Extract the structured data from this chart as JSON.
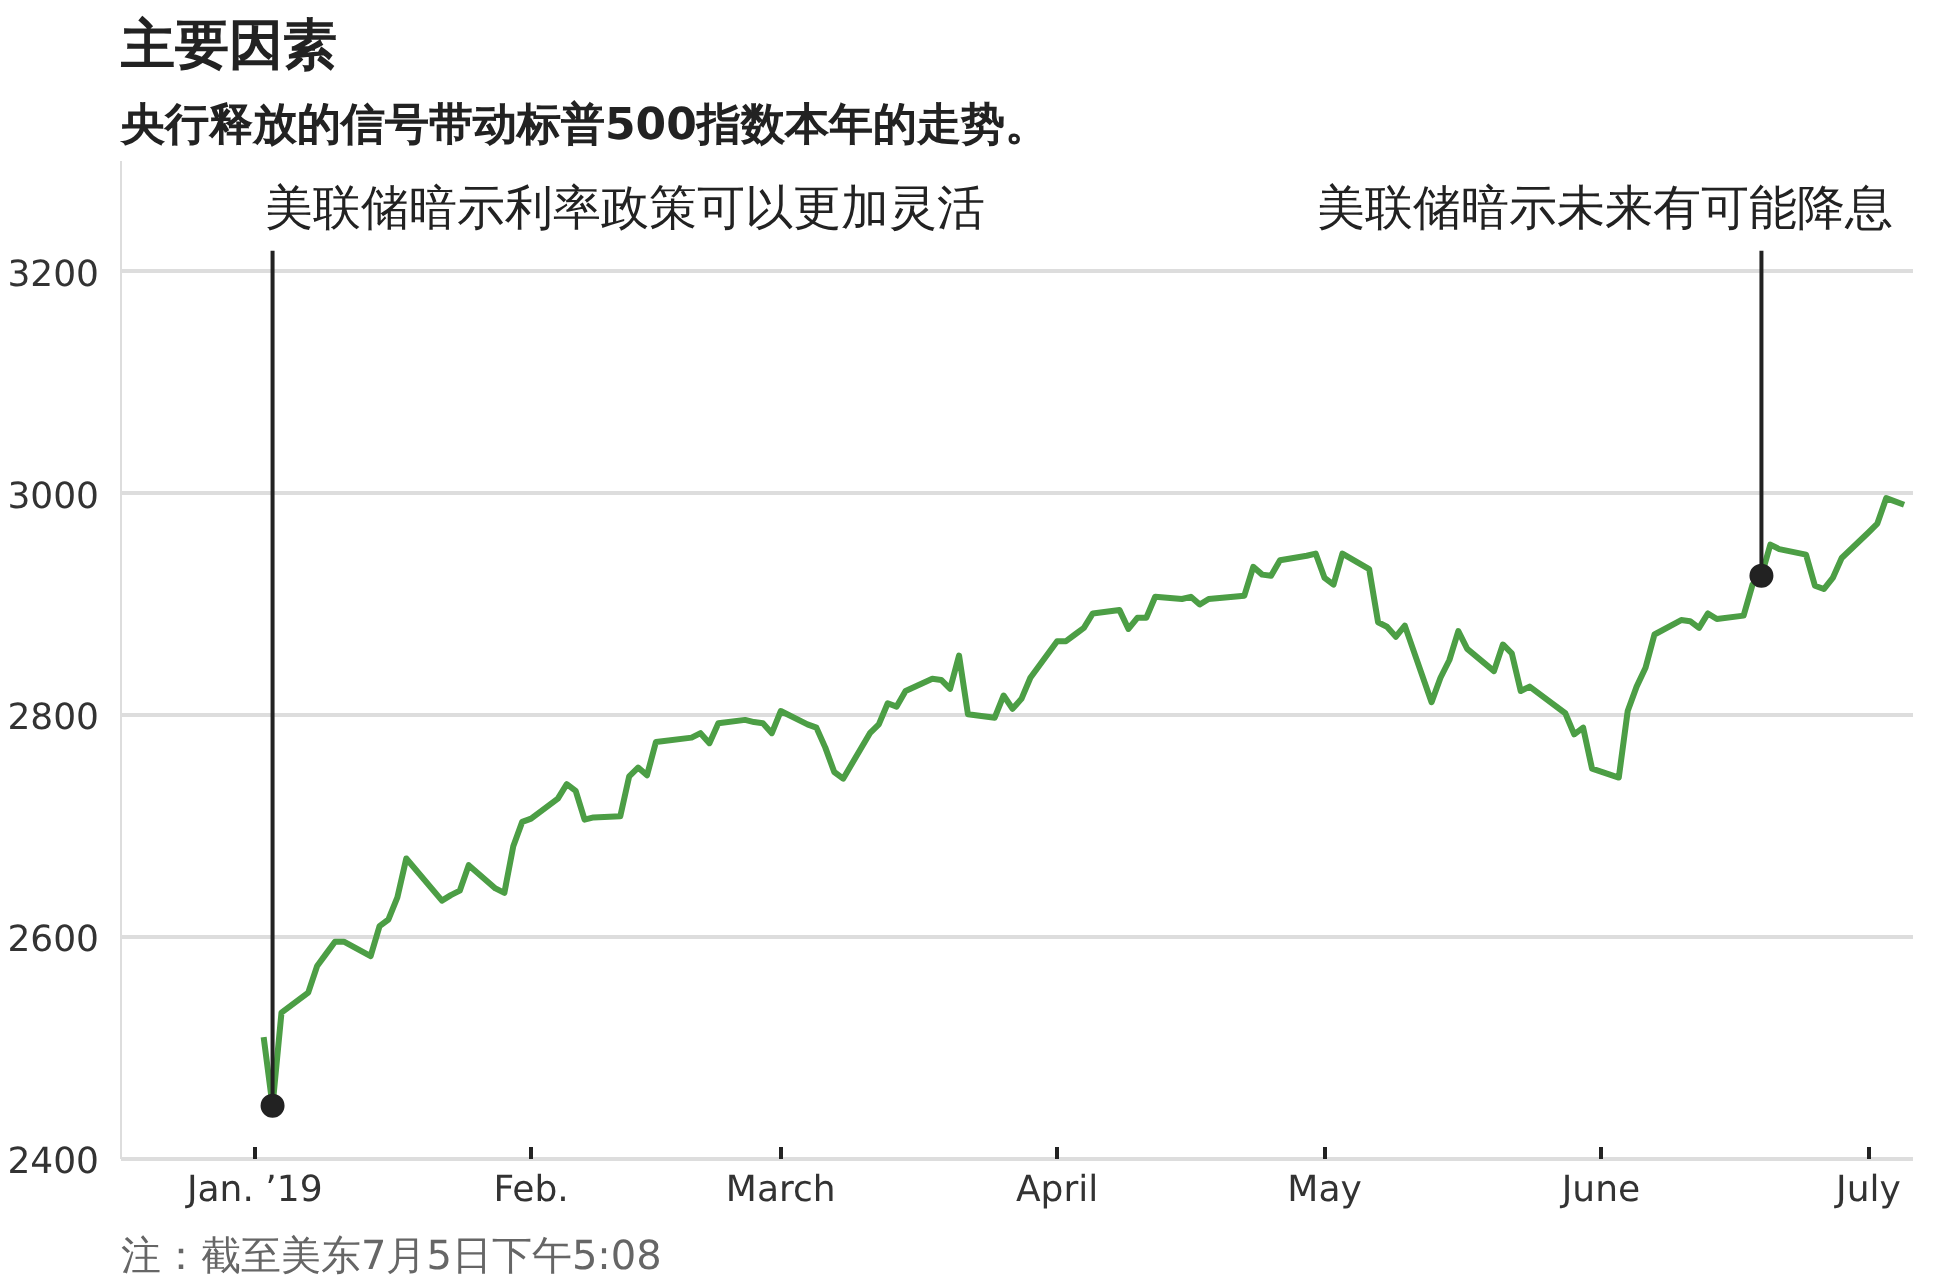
{
  "chart_data": {
    "type": "line",
    "title": "主要因素",
    "subtitle": "央行释放的信号带动标普500指数本年的走势。",
    "x": [
      "2019-01-02",
      "2019-01-03",
      "2019-01-04",
      "2019-01-07",
      "2019-01-08",
      "2019-01-09",
      "2019-01-10",
      "2019-01-11",
      "2019-01-14",
      "2019-01-15",
      "2019-01-16",
      "2019-01-17",
      "2019-01-18",
      "2019-01-22",
      "2019-01-23",
      "2019-01-24",
      "2019-01-25",
      "2019-01-28",
      "2019-01-29",
      "2019-01-30",
      "2019-01-31",
      "2019-02-01",
      "2019-02-04",
      "2019-02-05",
      "2019-02-06",
      "2019-02-07",
      "2019-02-08",
      "2019-02-11",
      "2019-02-12",
      "2019-02-13",
      "2019-02-14",
      "2019-02-15",
      "2019-02-19",
      "2019-02-20",
      "2019-02-21",
      "2019-02-22",
      "2019-02-25",
      "2019-02-26",
      "2019-02-27",
      "2019-02-28",
      "2019-03-01",
      "2019-03-04",
      "2019-03-05",
      "2019-03-06",
      "2019-03-07",
      "2019-03-08",
      "2019-03-11",
      "2019-03-12",
      "2019-03-13",
      "2019-03-14",
      "2019-03-15",
      "2019-03-18",
      "2019-03-19",
      "2019-03-20",
      "2019-03-21",
      "2019-03-22",
      "2019-03-25",
      "2019-03-26",
      "2019-03-27",
      "2019-03-28",
      "2019-03-29",
      "2019-04-01",
      "2019-04-02",
      "2019-04-03",
      "2019-04-04",
      "2019-04-05",
      "2019-04-08",
      "2019-04-09",
      "2019-04-10",
      "2019-04-11",
      "2019-04-12",
      "2019-04-15",
      "2019-04-16",
      "2019-04-17",
      "2019-04-18",
      "2019-04-22",
      "2019-04-23",
      "2019-04-24",
      "2019-04-25",
      "2019-04-26",
      "2019-04-29",
      "2019-04-30",
      "2019-05-01",
      "2019-05-02",
      "2019-05-03",
      "2019-05-06",
      "2019-05-07",
      "2019-05-08",
      "2019-05-09",
      "2019-05-10",
      "2019-05-13",
      "2019-05-14",
      "2019-05-15",
      "2019-05-16",
      "2019-05-17",
      "2019-05-20",
      "2019-05-21",
      "2019-05-22",
      "2019-05-23",
      "2019-05-24",
      "2019-05-28",
      "2019-05-29",
      "2019-05-30",
      "2019-05-31",
      "2019-06-03",
      "2019-06-04",
      "2019-06-05",
      "2019-06-06",
      "2019-06-07",
      "2019-06-10",
      "2019-06-11",
      "2019-06-12",
      "2019-06-13",
      "2019-06-14",
      "2019-06-17",
      "2019-06-18",
      "2019-06-19",
      "2019-06-20",
      "2019-06-21",
      "2019-06-24",
      "2019-06-25",
      "2019-06-26",
      "2019-06-27",
      "2019-06-28",
      "2019-07-01",
      "2019-07-02",
      "2019-07-03",
      "2019-07-05"
    ],
    "series": [
      {
        "color": "#4c9e45",
        "values": [
          2510,
          2448,
          2532,
          2550,
          2574,
          2585,
          2596,
          2596,
          2583,
          2610,
          2616,
          2636,
          2671,
          2633,
          2638,
          2642,
          2665,
          2644,
          2640,
          2682,
          2704,
          2707,
          2725,
          2738,
          2732,
          2706,
          2708,
          2709,
          2745,
          2753,
          2746,
          2776,
          2780,
          2784,
          2775,
          2793,
          2796,
          2794,
          2793,
          2784,
          2804,
          2792,
          2789,
          2771,
          2749,
          2743,
          2784,
          2792,
          2811,
          2808,
          2822,
          2833,
          2832,
          2824,
          2854,
          2801,
          2798,
          2818,
          2806,
          2815,
          2834,
          2867,
          2867,
          2873,
          2879,
          2892,
          2895,
          2878,
          2888,
          2888,
          2907,
          2905,
          2907,
          2900,
          2905,
          2908,
          2934,
          2927,
          2926,
          2940,
          2944,
          2946,
          2924,
          2918,
          2946,
          2932,
          2884,
          2880,
          2871,
          2881,
          2812,
          2834,
          2850,
          2876,
          2860,
          2840,
          2864,
          2856,
          2822,
          2826,
          2802,
          2783,
          2789,
          2752,
          2744,
          2804,
          2826,
          2843,
          2873,
          2886,
          2885,
          2879,
          2892,
          2887,
          2890,
          2918,
          2926,
          2954,
          2950,
          2945,
          2917,
          2914,
          2924,
          2942,
          2965,
          2973,
          2996,
          2990
        ]
      }
    ],
    "xlim": [
      "2018-12-17",
      "2019-07-06"
    ],
    "xticks": [
      {
        "value": "2019-01-01",
        "label": "Jan. ’19"
      },
      {
        "value": "2019-02-01",
        "label": "Feb."
      },
      {
        "value": "2019-03-01",
        "label": "March"
      },
      {
        "value": "2019-04-01",
        "label": "April"
      },
      {
        "value": "2019-05-01",
        "label": "May"
      },
      {
        "value": "2019-06-01",
        "label": "June"
      },
      {
        "value": "2019-07-01",
        "label": "July"
      }
    ],
    "ylim": [
      2400,
      3300
    ],
    "yticks": [
      2400,
      2600,
      2800,
      3000,
      3200
    ],
    "grid": "y",
    "annotations": [
      {
        "text": "美联储暗示利率政策可以更加灵活",
        "x": "2019-01-03",
        "y": 2448
      },
      {
        "text": "美联储暗示未来有可能降息",
        "x": "2019-06-19",
        "y": 2926
      },
      "注：截至美东7月5日下午5:08"
    ]
  }
}
